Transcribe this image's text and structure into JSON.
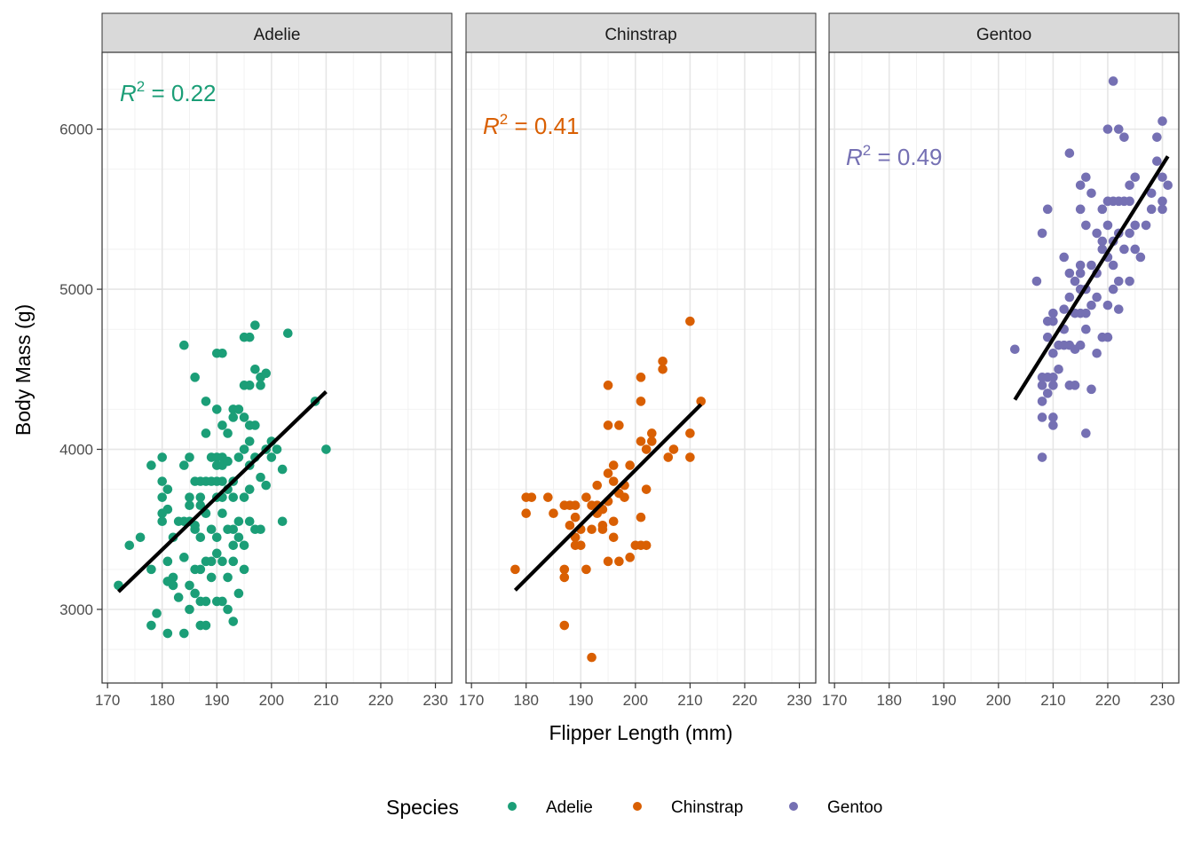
{
  "chart_data": {
    "type": "scatter",
    "xlabel": "Flipper Length (mm)",
    "ylabel": "Body Mass (g)",
    "xlim": [
      169,
      233
    ],
    "ylim": [
      2540,
      6480
    ],
    "x_ticks": [
      170,
      180,
      190,
      200,
      210,
      220,
      230
    ],
    "y_ticks": [
      3000,
      4000,
      5000,
      6000
    ],
    "grid": true,
    "legend": {
      "title": "Species",
      "position": "bottom",
      "entries": [
        "Adelie",
        "Chinstrap",
        "Gentoo"
      ]
    },
    "panels": [
      {
        "name": "Adelie",
        "color": "#1b9e77",
        "r2_value": "= 0.22",
        "fit": {
          "x": [
            172,
            210
          ],
          "y": [
            3110,
            4360
          ]
        },
        "points": [
          [
            172,
            3150
          ],
          [
            174,
            3400
          ],
          [
            176,
            3450
          ],
          [
            178,
            3900
          ],
          [
            178,
            3250
          ],
          [
            178,
            2900
          ],
          [
            179,
            2975
          ],
          [
            180,
            3950
          ],
          [
            180,
            3800
          ],
          [
            180,
            3700
          ],
          [
            180,
            3600
          ],
          [
            180,
            3550
          ],
          [
            181,
            3750
          ],
          [
            181,
            3625
          ],
          [
            181,
            3300
          ],
          [
            181,
            3175
          ],
          [
            181,
            2850
          ],
          [
            182,
            3200
          ],
          [
            182,
            3450
          ],
          [
            182,
            3150
          ],
          [
            183,
            3550
          ],
          [
            183,
            3075
          ],
          [
            184,
            4650
          ],
          [
            184,
            3900
          ],
          [
            184,
            3550
          ],
          [
            184,
            3325
          ],
          [
            184,
            2850
          ],
          [
            185,
            3950
          ],
          [
            185,
            3700
          ],
          [
            185,
            3650
          ],
          [
            185,
            3550
          ],
          [
            185,
            3150
          ],
          [
            185,
            3000
          ],
          [
            186,
            4450
          ],
          [
            186,
            3800
          ],
          [
            186,
            3500
          ],
          [
            186,
            3100
          ],
          [
            186,
            3525
          ],
          [
            186,
            3250
          ],
          [
            187,
            3800
          ],
          [
            187,
            3700
          ],
          [
            187,
            3650
          ],
          [
            187,
            3450
          ],
          [
            187,
            3250
          ],
          [
            187,
            3050
          ],
          [
            187,
            2900
          ],
          [
            188,
            4300
          ],
          [
            188,
            4100
          ],
          [
            188,
            3800
          ],
          [
            188,
            3600
          ],
          [
            188,
            3300
          ],
          [
            188,
            3050
          ],
          [
            188,
            2900
          ],
          [
            189,
            3950
          ],
          [
            189,
            3800
          ],
          [
            189,
            3500
          ],
          [
            189,
            3300
          ],
          [
            189,
            3200
          ],
          [
            190,
            4600
          ],
          [
            190,
            4250
          ],
          [
            190,
            3950
          ],
          [
            190,
            3800
          ],
          [
            190,
            3900
          ],
          [
            190,
            3700
          ],
          [
            190,
            3350
          ],
          [
            190,
            3050
          ],
          [
            190,
            3450
          ],
          [
            191,
            4600
          ],
          [
            191,
            3950
          ],
          [
            191,
            3900
          ],
          [
            191,
            3800
          ],
          [
            191,
            3700
          ],
          [
            191,
            3600
          ],
          [
            191,
            3300
          ],
          [
            191,
            3050
          ],
          [
            191,
            4150
          ],
          [
            192,
            4100
          ],
          [
            192,
            3925
          ],
          [
            192,
            3500
          ],
          [
            192,
            3000
          ],
          [
            192,
            3200
          ],
          [
            192,
            3750
          ],
          [
            193,
            4250
          ],
          [
            193,
            4200
          ],
          [
            193,
            3800
          ],
          [
            193,
            3700
          ],
          [
            193,
            3500
          ],
          [
            193,
            3400
          ],
          [
            193,
            3300
          ],
          [
            193,
            2925
          ],
          [
            194,
            4250
          ],
          [
            194,
            3950
          ],
          [
            194,
            3550
          ],
          [
            194,
            3450
          ],
          [
            194,
            3100
          ],
          [
            195,
            4700
          ],
          [
            195,
            4400
          ],
          [
            195,
            4200
          ],
          [
            195,
            4000
          ],
          [
            195,
            3700
          ],
          [
            195,
            3400
          ],
          [
            195,
            3250
          ],
          [
            196,
            4700
          ],
          [
            196,
            4400
          ],
          [
            196,
            4050
          ],
          [
            196,
            3900
          ],
          [
            196,
            4150
          ],
          [
            196,
            3550
          ],
          [
            196,
            3750
          ],
          [
            197,
            4775
          ],
          [
            197,
            4500
          ],
          [
            197,
            4150
          ],
          [
            197,
            3950
          ],
          [
            197,
            3500
          ],
          [
            198,
            4450
          ],
          [
            198,
            4400
          ],
          [
            198,
            3825
          ],
          [
            198,
            3500
          ],
          [
            199,
            4475
          ],
          [
            199,
            4000
          ],
          [
            199,
            3775
          ],
          [
            200,
            4050
          ],
          [
            200,
            3950
          ],
          [
            201,
            4000
          ],
          [
            202,
            3875
          ],
          [
            202,
            3550
          ],
          [
            203,
            4725
          ],
          [
            208,
            4300
          ],
          [
            210,
            4000
          ]
        ]
      },
      {
        "name": "Chinstrap",
        "color": "#d95f02",
        "r2_value": "= 0.41",
        "fit": {
          "x": [
            178,
            212
          ],
          "y": [
            3120,
            4280
          ]
        },
        "points": [
          [
            178,
            3250
          ],
          [
            180,
            3700
          ],
          [
            180,
            3600
          ],
          [
            181,
            3700
          ],
          [
            184,
            3700
          ],
          [
            185,
            3600
          ],
          [
            187,
            3650
          ],
          [
            187,
            3250
          ],
          [
            187,
            3200
          ],
          [
            187,
            2900
          ],
          [
            188,
            3525
          ],
          [
            188,
            3650
          ],
          [
            189,
            3650
          ],
          [
            189,
            3575
          ],
          [
            189,
            3450
          ],
          [
            189,
            3400
          ],
          [
            190,
            3500
          ],
          [
            190,
            3400
          ],
          [
            191,
            3700
          ],
          [
            191,
            3250
          ],
          [
            192,
            3650
          ],
          [
            192,
            3500
          ],
          [
            192,
            2700
          ],
          [
            193,
            3775
          ],
          [
            193,
            3650
          ],
          [
            193,
            3600
          ],
          [
            194,
            3625
          ],
          [
            194,
            3525
          ],
          [
            194,
            3500
          ],
          [
            195,
            4400
          ],
          [
            195,
            4150
          ],
          [
            195,
            3850
          ],
          [
            195,
            3675
          ],
          [
            195,
            3300
          ],
          [
            196,
            3900
          ],
          [
            196,
            3800
          ],
          [
            196,
            3550
          ],
          [
            196,
            3450
          ],
          [
            197,
            4150
          ],
          [
            197,
            3725
          ],
          [
            197,
            3300
          ],
          [
            198,
            3775
          ],
          [
            198,
            3700
          ],
          [
            199,
            3900
          ],
          [
            199,
            3325
          ],
          [
            200,
            3400
          ],
          [
            201,
            4450
          ],
          [
            201,
            4300
          ],
          [
            201,
            4050
          ],
          [
            201,
            3575
          ],
          [
            201,
            3400
          ],
          [
            202,
            3400
          ],
          [
            202,
            3750
          ],
          [
            202,
            4000
          ],
          [
            203,
            4100
          ],
          [
            203,
            4050
          ],
          [
            205,
            4550
          ],
          [
            205,
            4500
          ],
          [
            206,
            3950
          ],
          [
            207,
            4000
          ],
          [
            210,
            4800
          ],
          [
            210,
            4100
          ],
          [
            210,
            3950
          ],
          [
            212,
            4300
          ]
        ]
      },
      {
        "name": "Gentoo",
        "color": "#7570b3",
        "r2_value": "= 0.49",
        "fit": {
          "x": [
            203,
            231
          ],
          "y": [
            4310,
            5830
          ]
        },
        "points": [
          [
            203,
            4625
          ],
          [
            207,
            5050
          ],
          [
            208,
            5350
          ],
          [
            208,
            4450
          ],
          [
            208,
            4400
          ],
          [
            208,
            4300
          ],
          [
            208,
            4200
          ],
          [
            208,
            3950
          ],
          [
            209,
            5500
          ],
          [
            209,
            4800
          ],
          [
            209,
            4700
          ],
          [
            209,
            4450
          ],
          [
            209,
            4350
          ],
          [
            210,
            4850
          ],
          [
            210,
            4800
          ],
          [
            210,
            4600
          ],
          [
            210,
            4450
          ],
          [
            210,
            4400
          ],
          [
            210,
            4200
          ],
          [
            210,
            4150
          ],
          [
            211,
            4650
          ],
          [
            211,
            4500
          ],
          [
            212,
            5200
          ],
          [
            212,
            4875
          ],
          [
            212,
            4750
          ],
          [
            212,
            4650
          ],
          [
            213,
            5850
          ],
          [
            213,
            5100
          ],
          [
            213,
            4400
          ],
          [
            213,
            4650
          ],
          [
            213,
            4950
          ],
          [
            214,
            5050
          ],
          [
            214,
            4850
          ],
          [
            214,
            4400
          ],
          [
            214,
            4625
          ],
          [
            215,
            5650
          ],
          [
            215,
            5500
          ],
          [
            215,
            5150
          ],
          [
            215,
            5000
          ],
          [
            215,
            4850
          ],
          [
            215,
            4650
          ],
          [
            215,
            5100
          ],
          [
            216,
            5700
          ],
          [
            216,
            5400
          ],
          [
            216,
            4850
          ],
          [
            216,
            4100
          ],
          [
            216,
            4750
          ],
          [
            216,
            5000
          ],
          [
            217,
            5600
          ],
          [
            217,
            5150
          ],
          [
            217,
            4900
          ],
          [
            217,
            4375
          ],
          [
            218,
            5350
          ],
          [
            218,
            5100
          ],
          [
            218,
            4950
          ],
          [
            218,
            4600
          ],
          [
            219,
            5500
          ],
          [
            219,
            5250
          ],
          [
            219,
            4700
          ],
          [
            219,
            5300
          ],
          [
            220,
            6000
          ],
          [
            220,
            5550
          ],
          [
            220,
            5400
          ],
          [
            220,
            5200
          ],
          [
            220,
            4900
          ],
          [
            220,
            4700
          ],
          [
            221,
            6300
          ],
          [
            221,
            5550
          ],
          [
            221,
            5300
          ],
          [
            221,
            5000
          ],
          [
            221,
            5150
          ],
          [
            222,
            6000
          ],
          [
            222,
            5550
          ],
          [
            222,
            5350
          ],
          [
            222,
            5050
          ],
          [
            222,
            4875
          ],
          [
            223,
            5950
          ],
          [
            223,
            5550
          ],
          [
            223,
            5250
          ],
          [
            224,
            5650
          ],
          [
            224,
            5550
          ],
          [
            224,
            5350
          ],
          [
            224,
            5050
          ],
          [
            225,
            5700
          ],
          [
            225,
            5400
          ],
          [
            225,
            5250
          ],
          [
            226,
            5200
          ],
          [
            227,
            5400
          ],
          [
            228,
            5600
          ],
          [
            228,
            5500
          ],
          [
            229,
            5800
          ],
          [
            229,
            5950
          ],
          [
            230,
            6050
          ],
          [
            230,
            5700
          ],
          [
            230,
            5550
          ],
          [
            230,
            5500
          ],
          [
            231,
            5650
          ]
        ]
      }
    ]
  }
}
